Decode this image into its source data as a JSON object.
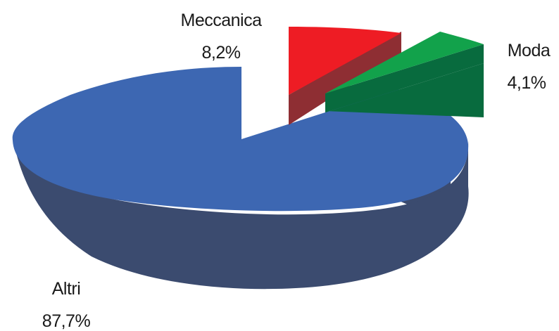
{
  "chart_data": {
    "type": "pie",
    "style": "3d-exploded",
    "title": "",
    "slices": [
      {
        "name": "Altri",
        "value": 87.7,
        "value_label": "87,7%",
        "color": "#3d67b2",
        "side_color": "#3b4b6f"
      },
      {
        "name": "Meccanica",
        "value": 8.2,
        "value_label": "8,2%",
        "color": "#ee1c24",
        "side_color": "#8e2e33"
      },
      {
        "name": "Moda",
        "value": 4.1,
        "value_label": "4,1%",
        "color": "#12a24b",
        "side_color": "#086b3e"
      }
    ]
  }
}
